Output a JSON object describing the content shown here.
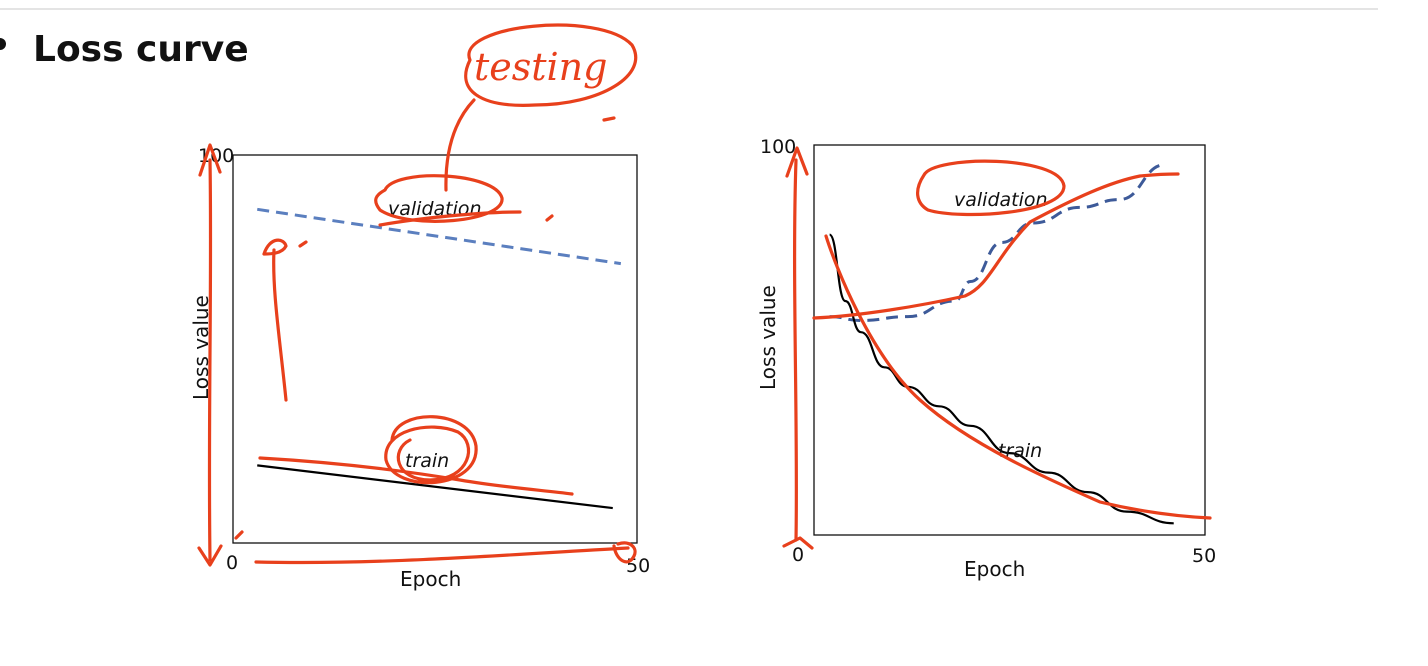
{
  "slide": {
    "heading": "Loss curve"
  },
  "annotation": {
    "handwritten_note": "testing",
    "ink_color": "#e8401c"
  },
  "chart_data": [
    {
      "type": "line",
      "xlabel": "Epoch",
      "ylabel": "Loss value",
      "xlim": [
        0,
        50
      ],
      "ylim": [
        0,
        100
      ],
      "x_ticks": [
        "0",
        "50"
      ],
      "y_ticks": [
        "100"
      ],
      "series": [
        {
          "name": "validation",
          "style": "dashed",
          "color": "#5b7fbf",
          "x": [
            3,
            48
          ],
          "y": [
            86,
            72
          ]
        },
        {
          "name": "train",
          "style": "solid",
          "color": "#000000",
          "x": [
            3,
            47
          ],
          "y": [
            20,
            9
          ]
        }
      ]
    },
    {
      "type": "line",
      "xlabel": "Epoch",
      "ylabel": "Loss value",
      "xlim": [
        0,
        50
      ],
      "ylim": [
        0,
        100
      ],
      "x_ticks": [
        "0",
        "50"
      ],
      "y_ticks": [
        "100"
      ],
      "series": [
        {
          "name": "validation",
          "style": "dashed",
          "color": "#3d5a99",
          "x": [
            2,
            6,
            12,
            18,
            20,
            24,
            28,
            34,
            39,
            45
          ],
          "y": [
            56,
            55,
            56,
            60,
            65,
            75,
            80,
            84,
            86,
            95
          ]
        },
        {
          "name": "train",
          "style": "solid",
          "color": "#000000",
          "x": [
            2,
            4,
            6,
            9,
            12,
            16,
            20,
            25,
            30,
            35,
            40,
            46
          ],
          "y": [
            77,
            60,
            52,
            43,
            38,
            33,
            28,
            21,
            16,
            11,
            6,
            3
          ]
        }
      ]
    }
  ]
}
